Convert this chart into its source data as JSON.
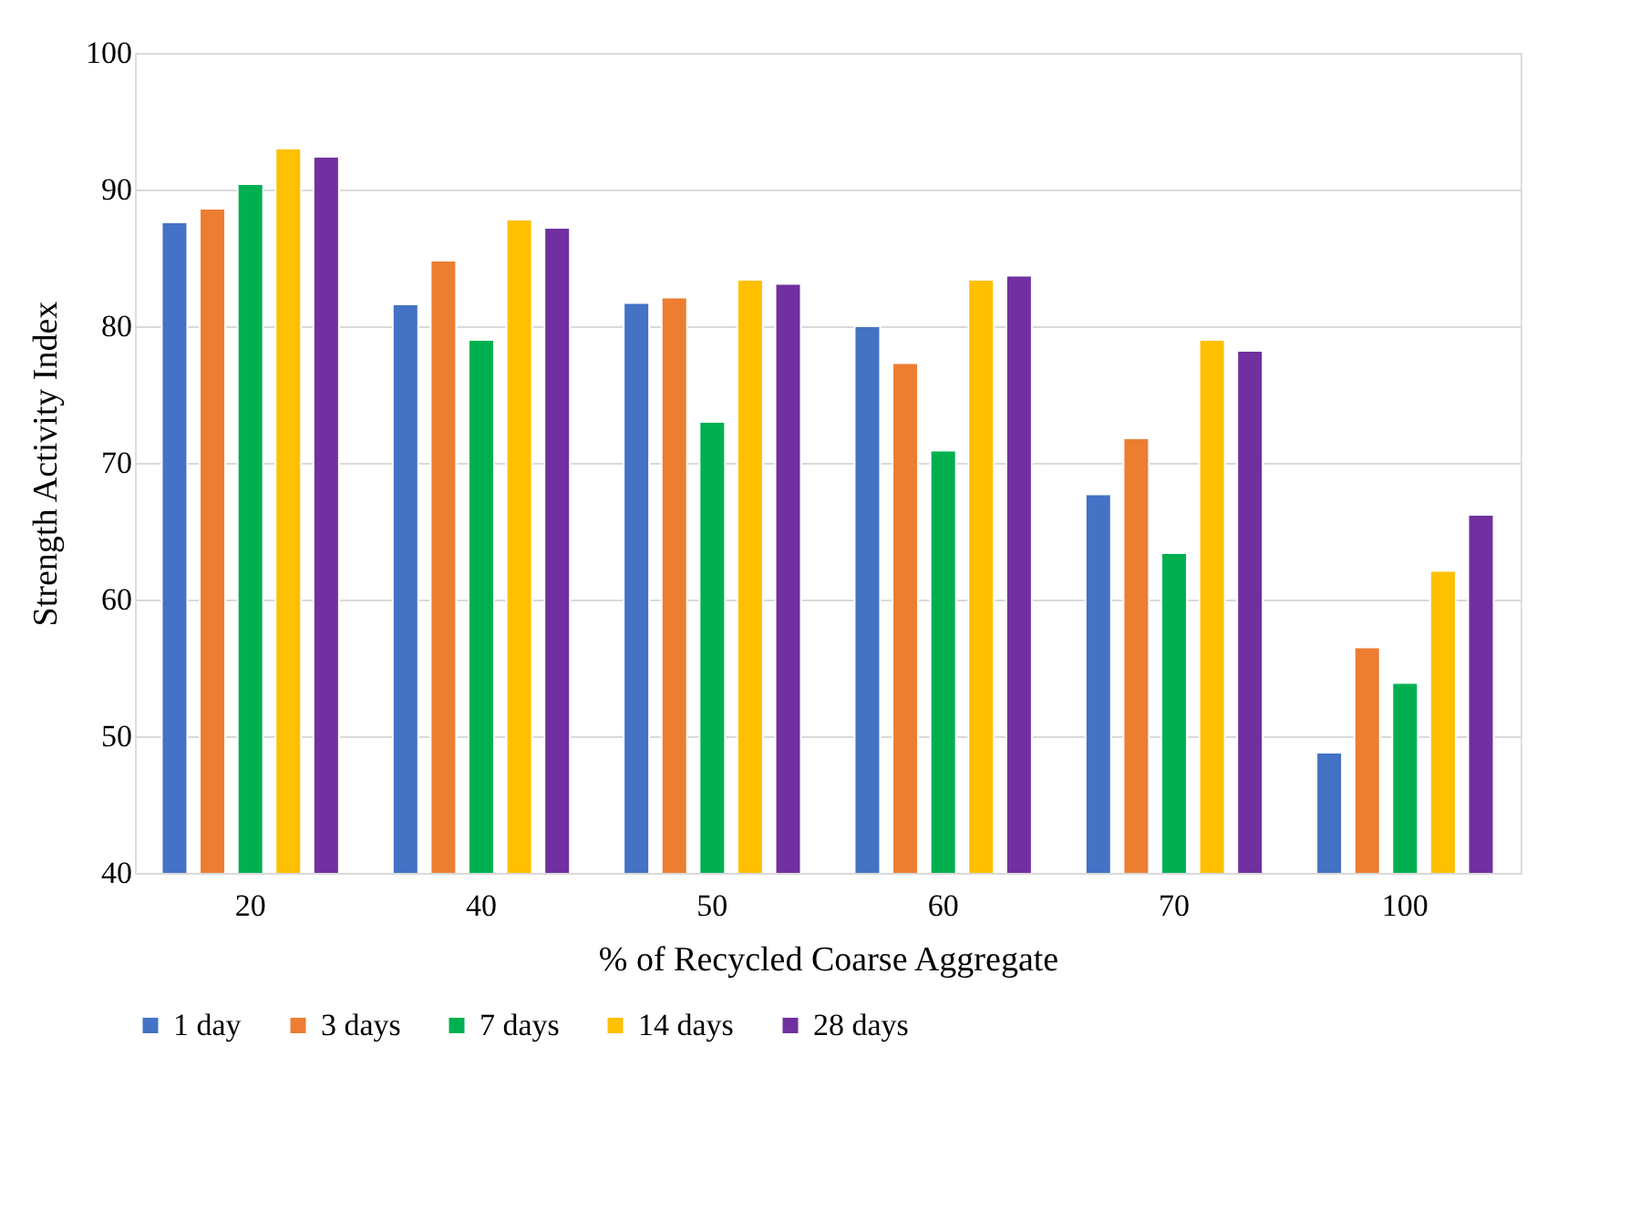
{
  "chart_data": {
    "type": "bar",
    "xlabel": "% of Recycled Coarse Aggregate",
    "ylabel": "Strength Activity Index",
    "categories": [
      "20",
      "40",
      "50",
      "60",
      "70",
      "100"
    ],
    "series": [
      {
        "name": "1 day",
        "color": "#4472c4",
        "values": [
          87.6,
          81.6,
          81.7,
          80.0,
          67.7,
          48.8
        ]
      },
      {
        "name": "3 days",
        "color": "#ed7d31",
        "values": [
          88.6,
          84.8,
          82.1,
          77.3,
          71.8,
          56.5
        ]
      },
      {
        "name": "7 days",
        "color": "#00b050",
        "values": [
          90.4,
          79.0,
          73.0,
          70.9,
          63.4,
          53.9
        ]
      },
      {
        "name": "14 days",
        "color": "#ffc000",
        "values": [
          93.0,
          87.8,
          83.4,
          83.4,
          79.0,
          62.1
        ]
      },
      {
        "name": "28 days",
        "color": "#7030a0",
        "values": [
          92.4,
          87.2,
          83.1,
          83.7,
          78.2,
          66.2
        ]
      }
    ],
    "ylim": [
      40,
      100
    ],
    "yticks": [
      40,
      50,
      60,
      70,
      80,
      90,
      100
    ],
    "grid": "y",
    "legend": "bottom"
  }
}
